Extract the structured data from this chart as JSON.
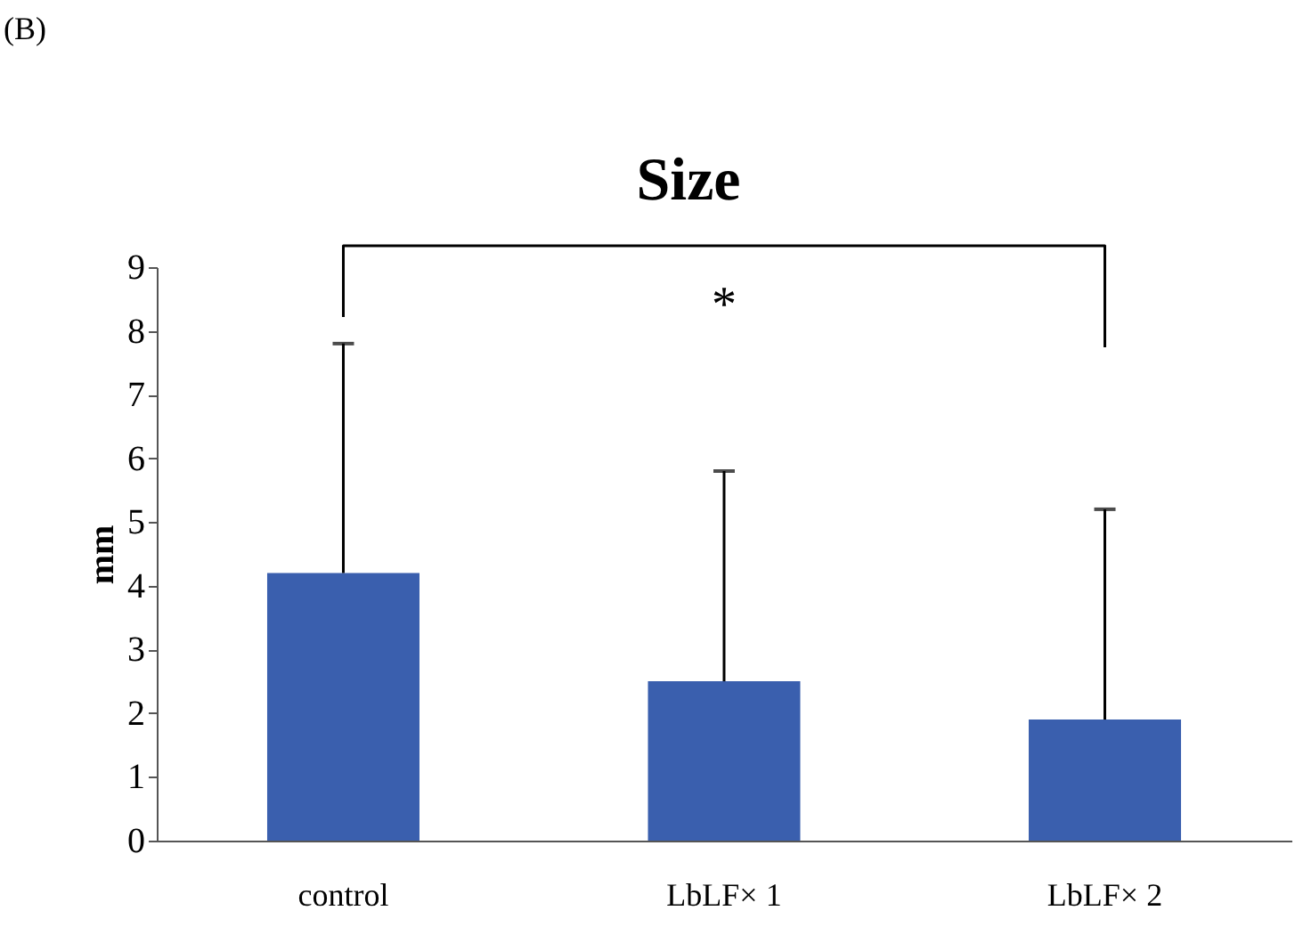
{
  "chart_data": {
    "type": "bar",
    "title": "Size",
    "ylabel": "mm",
    "categories": [
      "control",
      "LbLF× 1",
      "LbLF× 2"
    ],
    "values": [
      4.2,
      2.5,
      1.9
    ],
    "errors": [
      [
        4.2,
        7.8
      ],
      [
        2.5,
        5.8
      ],
      [
        1.9,
        5.2
      ]
    ],
    "color": "#3a5fae",
    "ylim": [
      0,
      9
    ],
    "yticks": [
      0,
      1,
      2,
      3,
      4,
      5,
      6,
      7,
      8,
      9
    ],
    "grid": false,
    "annotations": [
      "(B)",
      "*"
    ]
  }
}
